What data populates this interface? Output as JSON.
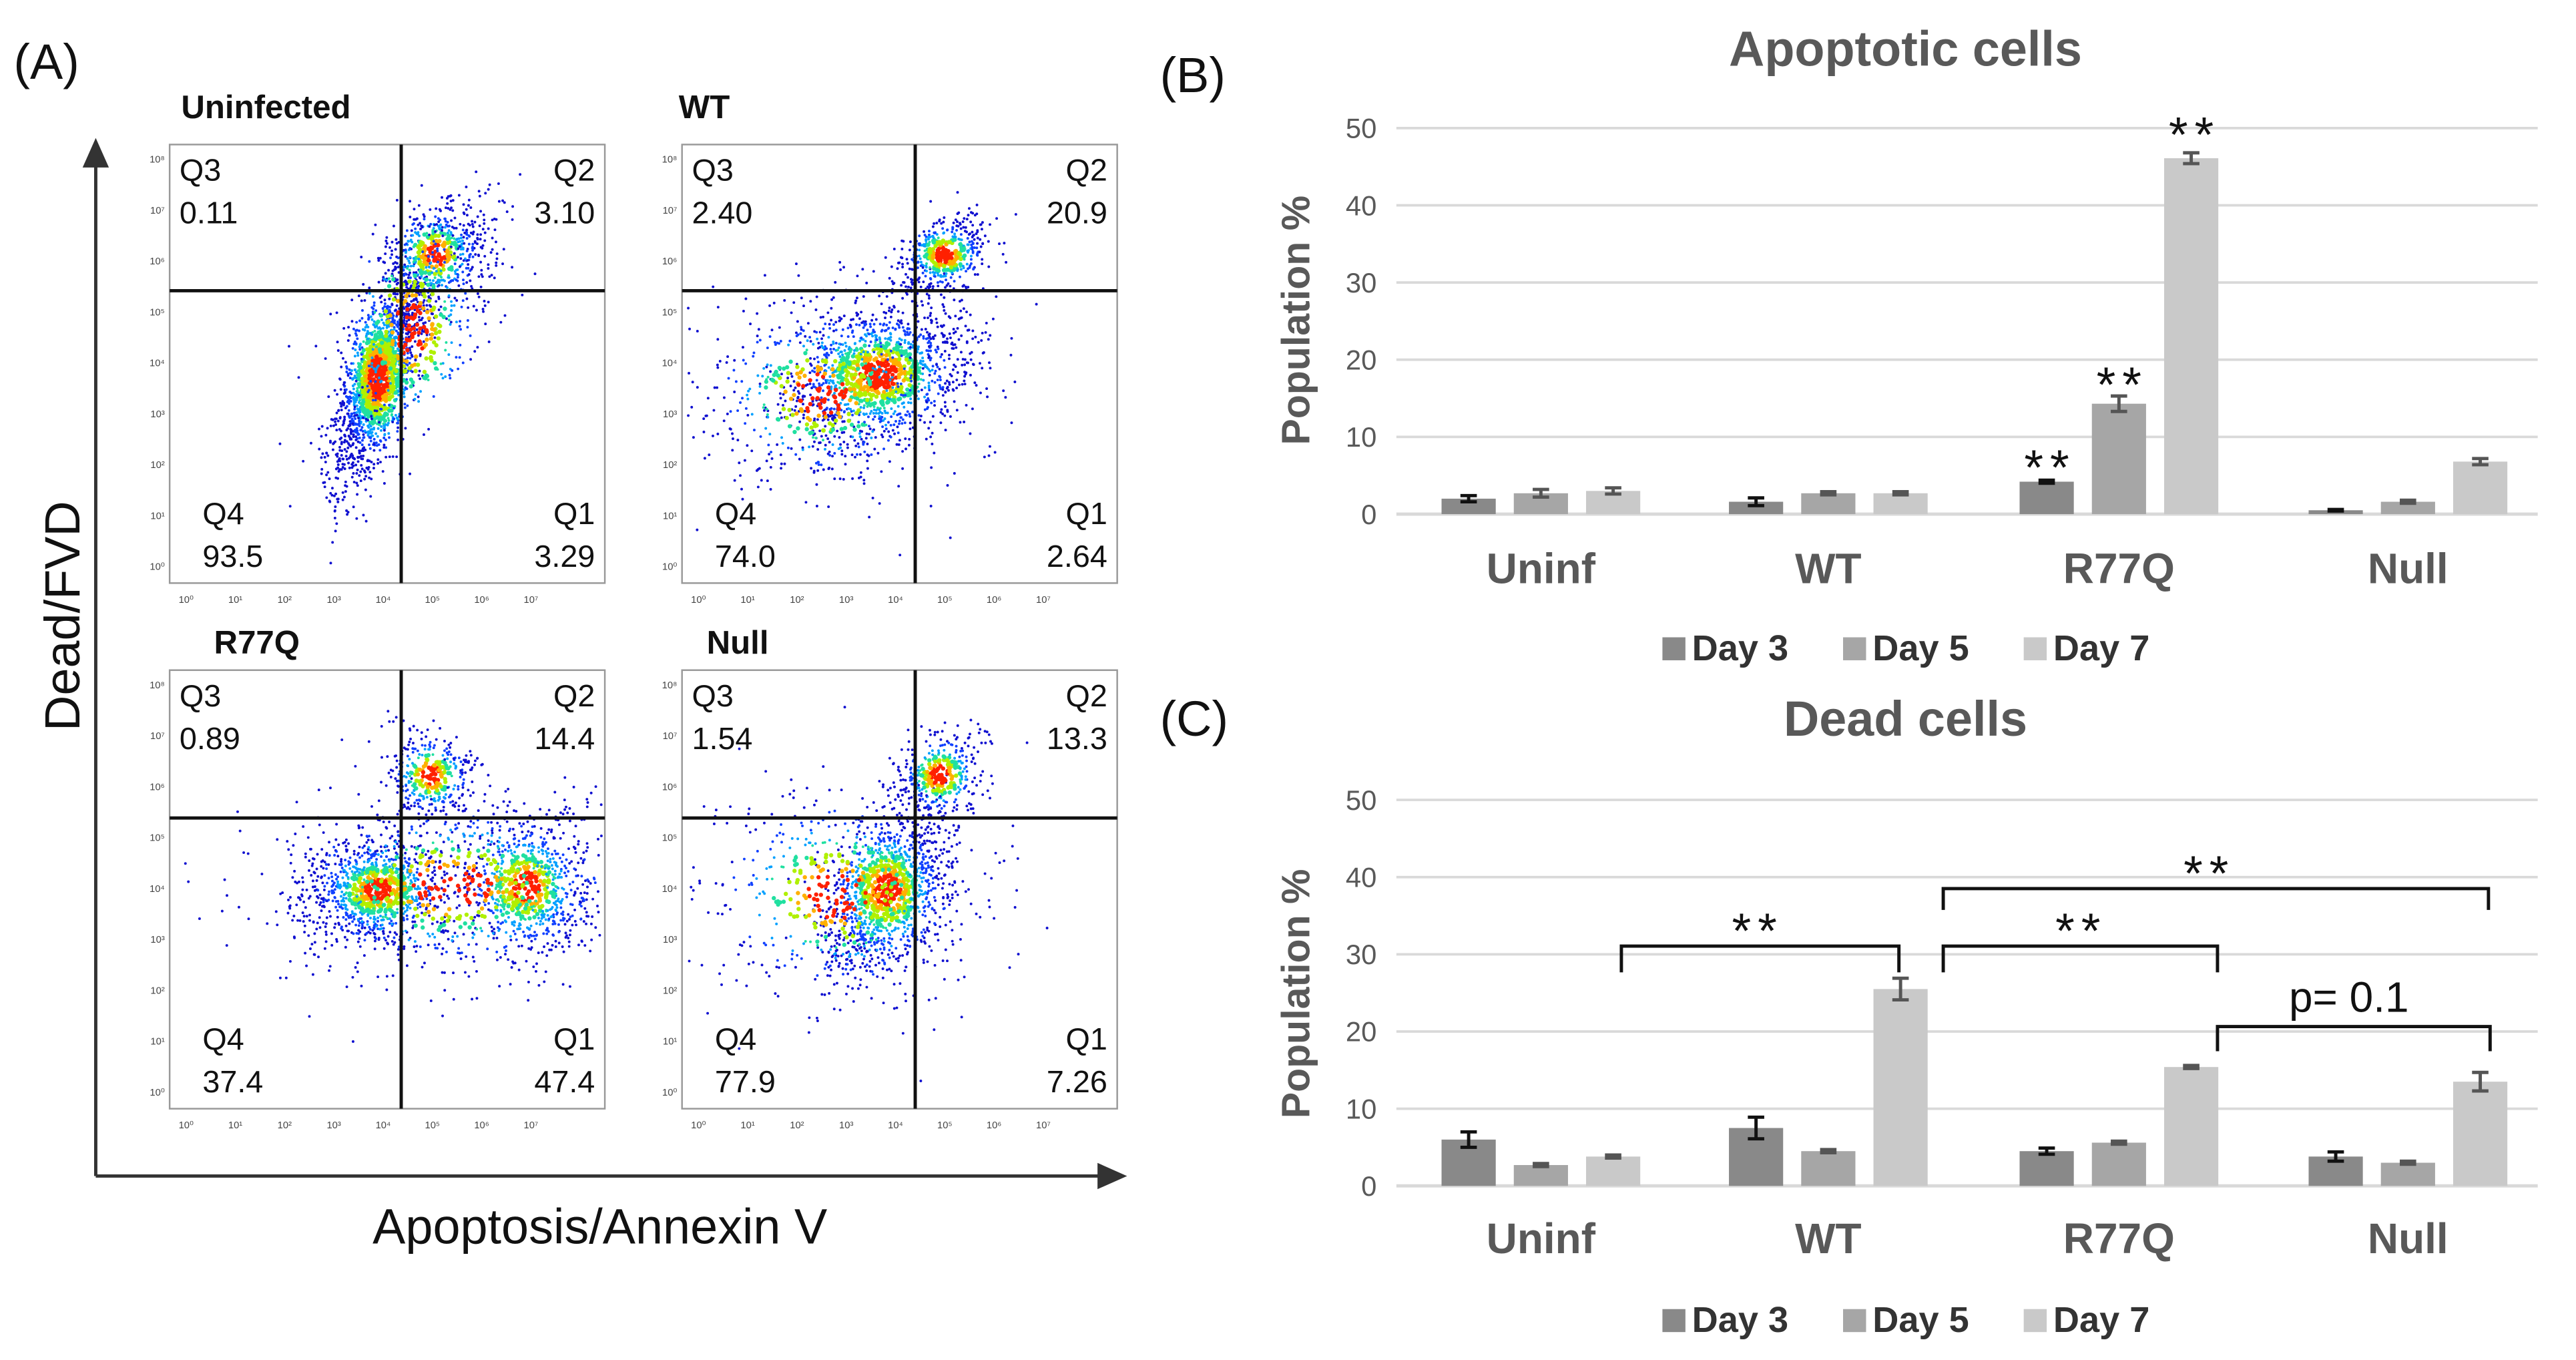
{
  "panel_labels": {
    "a": "(A)",
    "b": "(B)",
    "c": "(C)"
  },
  "flow": {
    "x_axis_label": "Apoptosis/Annexin  V",
    "y_axis_label": "Dead/FVD",
    "tick_labels": [
      "10⁰",
      "10¹",
      "10²",
      "10³",
      "10⁴",
      "10⁵",
      "10⁶",
      "10⁷",
      "10⁸"
    ],
    "plots": [
      {
        "title": "Uninfected",
        "Q1": [
          "Q1",
          "3.29"
        ],
        "Q2": [
          "Q2",
          "3.10"
        ],
        "Q3": [
          "Q3",
          "0.11"
        ],
        "Q4": [
          "Q4",
          "93.5"
        ]
      },
      {
        "title": "WT",
        "Q1": [
          "Q1",
          "2.64"
        ],
        "Q2": [
          "Q2",
          "20.9"
        ],
        "Q3": [
          "Q3",
          "2.40"
        ],
        "Q4": [
          "Q4",
          "74.0"
        ]
      },
      {
        "title": "R77Q",
        "Q1": [
          "Q1",
          "47.4"
        ],
        "Q2": [
          "Q2",
          "14.4"
        ],
        "Q3": [
          "Q3",
          "0.89"
        ],
        "Q4": [
          "Q4",
          "37.4"
        ]
      },
      {
        "title": "Null",
        "Q1": [
          "Q1",
          "7.26"
        ],
        "Q2": [
          "Q2",
          "13.3"
        ],
        "Q3": [
          "Q3",
          "1.54"
        ],
        "Q4": [
          "Q4",
          "77.9"
        ]
      }
    ]
  },
  "chart_data": [
    {
      "type": "bar",
      "title": "Apoptotic cells",
      "ylabel": "Population %",
      "xlabel": "",
      "ylim": [
        0,
        50
      ],
      "yticks": [
        "0",
        "10",
        "20",
        "30",
        "40",
        "50"
      ],
      "grid": true,
      "legend_position": "bottom",
      "categories": [
        "Uninf",
        "WT",
        "R77Q",
        "Null"
      ],
      "series": [
        {
          "name": "Day 3",
          "color": "#898989",
          "values": [
            2.0,
            1.6,
            4.2,
            0.5
          ],
          "errors": [
            0.4,
            0.5,
            0.2,
            0.1
          ]
        },
        {
          "name": "Day 5",
          "color": "#a6a6a6",
          "values": [
            2.7,
            2.7,
            14.3,
            1.6
          ],
          "errors": [
            0.5,
            0.2,
            1.0,
            0.2
          ]
        },
        {
          "name": "Day 7",
          "color": "#c9c9c9",
          "values": [
            3.0,
            2.7,
            46.1,
            6.8
          ],
          "errors": [
            0.4,
            0.2,
            0.7,
            0.4
          ]
        }
      ],
      "annotations": [
        {
          "text": "**",
          "category": "R77Q",
          "series": "Day 3"
        },
        {
          "text": "**",
          "category": "R77Q",
          "series": "Day 5"
        },
        {
          "text": "**",
          "category": "R77Q",
          "series": "Day 7"
        }
      ]
    },
    {
      "type": "bar",
      "title": "Dead cells",
      "ylabel": "Population %",
      "xlabel": "",
      "ylim": [
        0,
        50
      ],
      "yticks": [
        "0",
        "10",
        "20",
        "30",
        "40",
        "50"
      ],
      "grid": true,
      "legend_position": "bottom",
      "categories": [
        "Uninf",
        "WT",
        "R77Q",
        "Null"
      ],
      "series": [
        {
          "name": "Day 3",
          "color": "#898989",
          "values": [
            6.0,
            7.5,
            4.5,
            3.8
          ],
          "errors": [
            1.0,
            1.4,
            0.4,
            0.6
          ]
        },
        {
          "name": "Day 5",
          "color": "#a6a6a6",
          "values": [
            2.7,
            4.5,
            5.6,
            3.0
          ],
          "errors": [
            0.2,
            0.2,
            0.2,
            0.2
          ]
        },
        {
          "name": "Day 7",
          "color": "#c9c9c9",
          "values": [
            3.8,
            25.5,
            15.4,
            13.5
          ],
          "errors": [
            0.2,
            1.4,
            0.2,
            1.2
          ]
        }
      ],
      "annotations": [
        {
          "text": "**",
          "from": "Uninf Day 7",
          "to": "WT Day 7"
        },
        {
          "text": "**",
          "from": "WT Day 7",
          "to": "R77Q Day 7"
        },
        {
          "text": "**",
          "from": "WT Day 7",
          "to": "Null Day 7"
        },
        {
          "text": "p= 0.1",
          "from": "R77Q Day 7",
          "to": "Null Day 7"
        }
      ]
    }
  ]
}
